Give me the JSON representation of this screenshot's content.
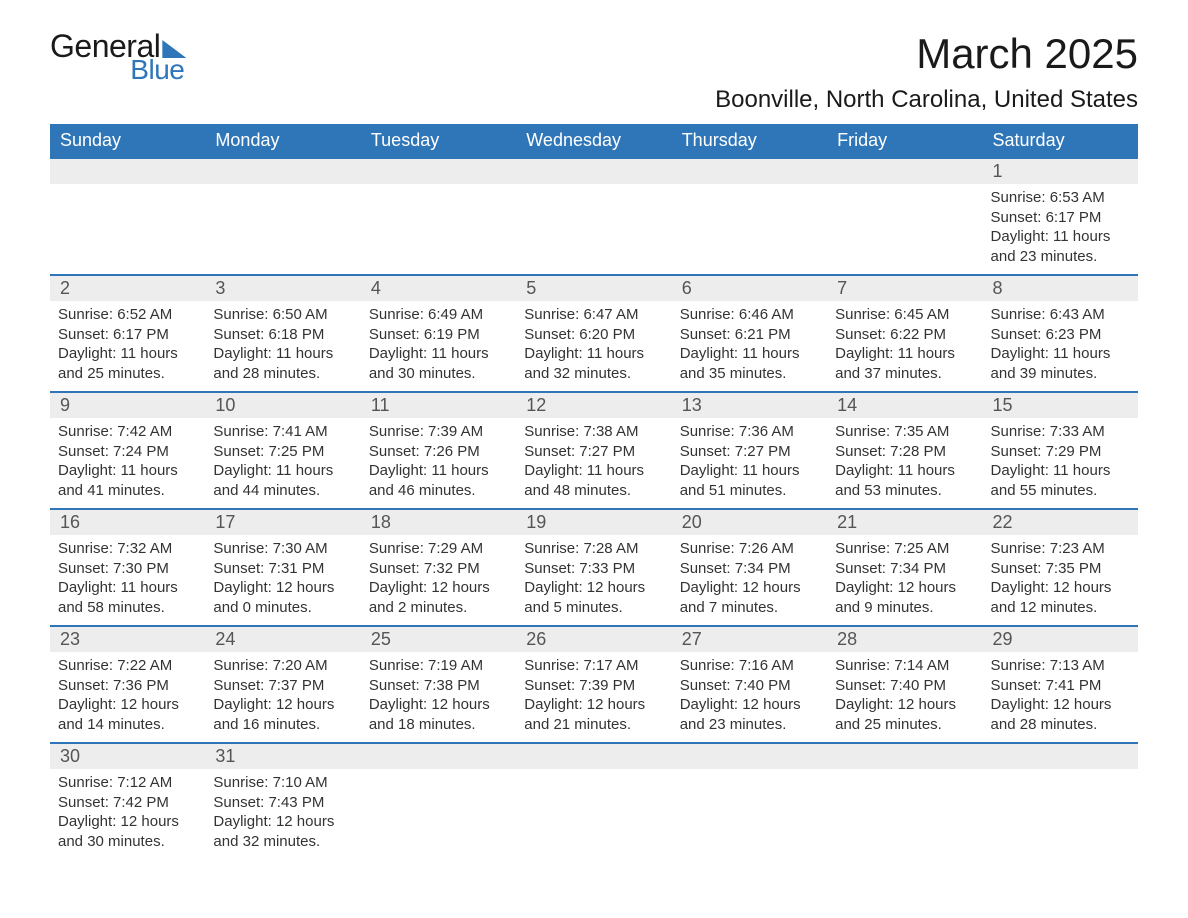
{
  "logo": {
    "text_general": "General",
    "text_blue": "Blue",
    "brand_color": "#2f76b8"
  },
  "title": "March 2025",
  "location": "Boonville, North Carolina, United States",
  "colors": {
    "header_bg": "#2f76b8",
    "header_text": "#ffffff",
    "daynum_bg": "#ededed",
    "daynum_border": "#2f76b8",
    "body_text": "#333333",
    "page_bg": "#ffffff"
  },
  "typography": {
    "title_fontsize": 42,
    "location_fontsize": 24,
    "dow_fontsize": 18,
    "daynum_fontsize": 18,
    "body_fontsize": 15
  },
  "days_of_week": [
    "Sunday",
    "Monday",
    "Tuesday",
    "Wednesday",
    "Thursday",
    "Friday",
    "Saturday"
  ],
  "weeks": [
    [
      {
        "n": "",
        "sunrise": "",
        "sunset": "",
        "daylight": ""
      },
      {
        "n": "",
        "sunrise": "",
        "sunset": "",
        "daylight": ""
      },
      {
        "n": "",
        "sunrise": "",
        "sunset": "",
        "daylight": ""
      },
      {
        "n": "",
        "sunrise": "",
        "sunset": "",
        "daylight": ""
      },
      {
        "n": "",
        "sunrise": "",
        "sunset": "",
        "daylight": ""
      },
      {
        "n": "",
        "sunrise": "",
        "sunset": "",
        "daylight": ""
      },
      {
        "n": "1",
        "sunrise": "Sunrise: 6:53 AM",
        "sunset": "Sunset: 6:17 PM",
        "daylight": "Daylight: 11 hours and 23 minutes."
      }
    ],
    [
      {
        "n": "2",
        "sunrise": "Sunrise: 6:52 AM",
        "sunset": "Sunset: 6:17 PM",
        "daylight": "Daylight: 11 hours and 25 minutes."
      },
      {
        "n": "3",
        "sunrise": "Sunrise: 6:50 AM",
        "sunset": "Sunset: 6:18 PM",
        "daylight": "Daylight: 11 hours and 28 minutes."
      },
      {
        "n": "4",
        "sunrise": "Sunrise: 6:49 AM",
        "sunset": "Sunset: 6:19 PM",
        "daylight": "Daylight: 11 hours and 30 minutes."
      },
      {
        "n": "5",
        "sunrise": "Sunrise: 6:47 AM",
        "sunset": "Sunset: 6:20 PM",
        "daylight": "Daylight: 11 hours and 32 minutes."
      },
      {
        "n": "6",
        "sunrise": "Sunrise: 6:46 AM",
        "sunset": "Sunset: 6:21 PM",
        "daylight": "Daylight: 11 hours and 35 minutes."
      },
      {
        "n": "7",
        "sunrise": "Sunrise: 6:45 AM",
        "sunset": "Sunset: 6:22 PM",
        "daylight": "Daylight: 11 hours and 37 minutes."
      },
      {
        "n": "8",
        "sunrise": "Sunrise: 6:43 AM",
        "sunset": "Sunset: 6:23 PM",
        "daylight": "Daylight: 11 hours and 39 minutes."
      }
    ],
    [
      {
        "n": "9",
        "sunrise": "Sunrise: 7:42 AM",
        "sunset": "Sunset: 7:24 PM",
        "daylight": "Daylight: 11 hours and 41 minutes."
      },
      {
        "n": "10",
        "sunrise": "Sunrise: 7:41 AM",
        "sunset": "Sunset: 7:25 PM",
        "daylight": "Daylight: 11 hours and 44 minutes."
      },
      {
        "n": "11",
        "sunrise": "Sunrise: 7:39 AM",
        "sunset": "Sunset: 7:26 PM",
        "daylight": "Daylight: 11 hours and 46 minutes."
      },
      {
        "n": "12",
        "sunrise": "Sunrise: 7:38 AM",
        "sunset": "Sunset: 7:27 PM",
        "daylight": "Daylight: 11 hours and 48 minutes."
      },
      {
        "n": "13",
        "sunrise": "Sunrise: 7:36 AM",
        "sunset": "Sunset: 7:27 PM",
        "daylight": "Daylight: 11 hours and 51 minutes."
      },
      {
        "n": "14",
        "sunrise": "Sunrise: 7:35 AM",
        "sunset": "Sunset: 7:28 PM",
        "daylight": "Daylight: 11 hours and 53 minutes."
      },
      {
        "n": "15",
        "sunrise": "Sunrise: 7:33 AM",
        "sunset": "Sunset: 7:29 PM",
        "daylight": "Daylight: 11 hours and 55 minutes."
      }
    ],
    [
      {
        "n": "16",
        "sunrise": "Sunrise: 7:32 AM",
        "sunset": "Sunset: 7:30 PM",
        "daylight": "Daylight: 11 hours and 58 minutes."
      },
      {
        "n": "17",
        "sunrise": "Sunrise: 7:30 AM",
        "sunset": "Sunset: 7:31 PM",
        "daylight": "Daylight: 12 hours and 0 minutes."
      },
      {
        "n": "18",
        "sunrise": "Sunrise: 7:29 AM",
        "sunset": "Sunset: 7:32 PM",
        "daylight": "Daylight: 12 hours and 2 minutes."
      },
      {
        "n": "19",
        "sunrise": "Sunrise: 7:28 AM",
        "sunset": "Sunset: 7:33 PM",
        "daylight": "Daylight: 12 hours and 5 minutes."
      },
      {
        "n": "20",
        "sunrise": "Sunrise: 7:26 AM",
        "sunset": "Sunset: 7:34 PM",
        "daylight": "Daylight: 12 hours and 7 minutes."
      },
      {
        "n": "21",
        "sunrise": "Sunrise: 7:25 AM",
        "sunset": "Sunset: 7:34 PM",
        "daylight": "Daylight: 12 hours and 9 minutes."
      },
      {
        "n": "22",
        "sunrise": "Sunrise: 7:23 AM",
        "sunset": "Sunset: 7:35 PM",
        "daylight": "Daylight: 12 hours and 12 minutes."
      }
    ],
    [
      {
        "n": "23",
        "sunrise": "Sunrise: 7:22 AM",
        "sunset": "Sunset: 7:36 PM",
        "daylight": "Daylight: 12 hours and 14 minutes."
      },
      {
        "n": "24",
        "sunrise": "Sunrise: 7:20 AM",
        "sunset": "Sunset: 7:37 PM",
        "daylight": "Daylight: 12 hours and 16 minutes."
      },
      {
        "n": "25",
        "sunrise": "Sunrise: 7:19 AM",
        "sunset": "Sunset: 7:38 PM",
        "daylight": "Daylight: 12 hours and 18 minutes."
      },
      {
        "n": "26",
        "sunrise": "Sunrise: 7:17 AM",
        "sunset": "Sunset: 7:39 PM",
        "daylight": "Daylight: 12 hours and 21 minutes."
      },
      {
        "n": "27",
        "sunrise": "Sunrise: 7:16 AM",
        "sunset": "Sunset: 7:40 PM",
        "daylight": "Daylight: 12 hours and 23 minutes."
      },
      {
        "n": "28",
        "sunrise": "Sunrise: 7:14 AM",
        "sunset": "Sunset: 7:40 PM",
        "daylight": "Daylight: 12 hours and 25 minutes."
      },
      {
        "n": "29",
        "sunrise": "Sunrise: 7:13 AM",
        "sunset": "Sunset: 7:41 PM",
        "daylight": "Daylight: 12 hours and 28 minutes."
      }
    ],
    [
      {
        "n": "30",
        "sunrise": "Sunrise: 7:12 AM",
        "sunset": "Sunset: 7:42 PM",
        "daylight": "Daylight: 12 hours and 30 minutes."
      },
      {
        "n": "31",
        "sunrise": "Sunrise: 7:10 AM",
        "sunset": "Sunset: 7:43 PM",
        "daylight": "Daylight: 12 hours and 32 minutes."
      },
      {
        "n": "",
        "sunrise": "",
        "sunset": "",
        "daylight": ""
      },
      {
        "n": "",
        "sunrise": "",
        "sunset": "",
        "daylight": ""
      },
      {
        "n": "",
        "sunrise": "",
        "sunset": "",
        "daylight": ""
      },
      {
        "n": "",
        "sunrise": "",
        "sunset": "",
        "daylight": ""
      },
      {
        "n": "",
        "sunrise": "",
        "sunset": "",
        "daylight": ""
      }
    ]
  ]
}
